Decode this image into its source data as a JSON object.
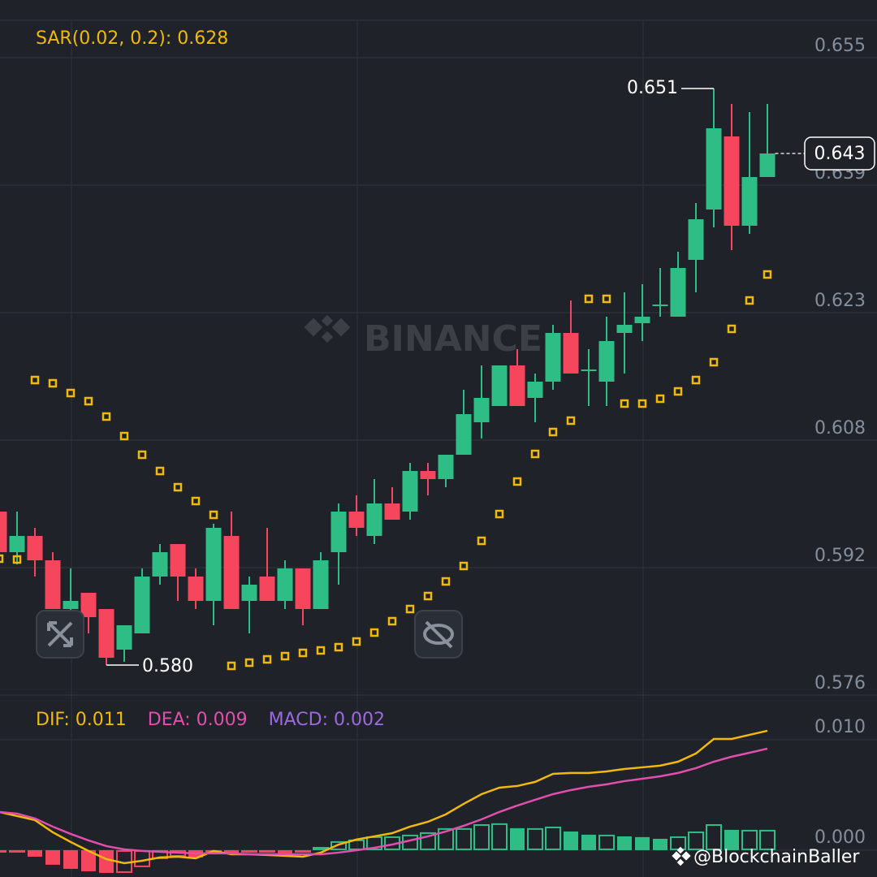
{
  "chart_data": [
    {
      "type": "candlestick",
      "indicator_label": "SAR(0.02, 0.2): 0.628",
      "watermark": "BINANCE",
      "up_color": "#2ebd85",
      "down_color": "#f6465d",
      "open": [
        0.5989,
        0.5939,
        0.5959,
        0.5929,
        0.5869,
        0.5889,
        0.5869,
        0.5819,
        0.5839,
        0.5909,
        0.5949,
        0.5909,
        0.5879,
        0.5959,
        0.5879,
        0.5909,
        0.5879,
        0.5919,
        0.5869,
        0.5939,
        0.5989,
        0.5959,
        0.5999,
        0.5989,
        0.6039,
        0.6029,
        0.6059,
        0.6099,
        0.6119,
        0.6169,
        0.6129,
        0.6149,
        0.6209,
        0.6162,
        0.6149,
        0.6209,
        0.6221,
        0.6242,
        0.6229,
        0.6299,
        0.6361,
        0.6451,
        0.6341,
        0.6401
      ],
      "high": [
        0.5989,
        0.5989,
        0.5969,
        0.5939,
        0.5919,
        0.5889,
        0.5869,
        0.5849,
        0.5919,
        0.5949,
        0.5949,
        0.5919,
        0.5974,
        0.5989,
        0.5909,
        0.5969,
        0.5929,
        0.5919,
        0.5939,
        0.5999,
        0.6009,
        0.6029,
        0.6019,
        0.6049,
        0.6049,
        0.6059,
        0.6139,
        0.6169,
        0.6169,
        0.6189,
        0.6159,
        0.6219,
        0.6249,
        0.6189,
        0.6229,
        0.6259,
        0.6269,
        0.6289,
        0.6309,
        0.6369,
        0.651,
        0.6491,
        0.6481,
        0.6491
      ],
      "low": [
        0.5929,
        0.5924,
        0.5909,
        0.5869,
        0.5849,
        0.5839,
        0.58,
        0.5804,
        0.5839,
        0.5899,
        0.5879,
        0.5869,
        0.5849,
        0.5869,
        0.5839,
        0.5879,
        0.5869,
        0.5849,
        0.5869,
        0.5899,
        0.5959,
        0.5949,
        0.5979,
        0.5979,
        0.6009,
        0.6019,
        0.6059,
        0.6079,
        0.6119,
        0.6119,
        0.6099,
        0.6139,
        0.6159,
        0.6119,
        0.6119,
        0.6159,
        0.6199,
        0.6229,
        0.6229,
        0.6259,
        0.6339,
        0.6311,
        0.6331,
        0.6401
      ],
      "close": [
        0.5939,
        0.5959,
        0.5929,
        0.5869,
        0.5879,
        0.5859,
        0.5809,
        0.5849,
        0.5909,
        0.5939,
        0.5909,
        0.5879,
        0.5969,
        0.5869,
        0.5899,
        0.5879,
        0.5919,
        0.5869,
        0.5929,
        0.5989,
        0.5969,
        0.5999,
        0.5979,
        0.6039,
        0.6029,
        0.6059,
        0.6109,
        0.6129,
        0.6169,
        0.6119,
        0.6149,
        0.6209,
        0.6159,
        0.6164,
        0.6199,
        0.6219,
        0.6229,
        0.6244,
        0.6289,
        0.6349,
        0.6461,
        0.6341,
        0.6401,
        0.643
      ],
      "sar": {
        "color": "#f0b90b",
        "values": [
          0.5931,
          0.593,
          0.6151,
          0.6147,
          0.6135,
          0.6125,
          0.6106,
          0.6082,
          0.6059,
          0.6039,
          0.6019,
          0.6002,
          0.5985,
          0.5799,
          0.5803,
          0.5807,
          0.5811,
          0.5815,
          0.5818,
          0.5822,
          0.5829,
          0.584,
          0.5854,
          0.5869,
          0.5885,
          0.5903,
          0.5922,
          0.5953,
          0.5986,
          0.6026,
          0.606,
          0.6087,
          0.6101,
          0.6251,
          0.6251,
          0.6122,
          0.6122,
          0.6128,
          0.6137,
          0.6151,
          0.6173,
          0.6214,
          0.6249,
          0.6281
        ]
      },
      "high_marker": 0.651,
      "low_marker": {
        "value": 0.58,
        "label": "0.580"
      },
      "last_price": 0.643,
      "ylim": [
        0.5759,
        0.6594
      ],
      "yticks": [
        {
          "value": 0.6548,
          "label": "0.655"
        },
        {
          "value": 0.6391,
          "label": "0.639"
        },
        {
          "value": 0.6234,
          "label": "0.623"
        },
        {
          "value": 0.6077,
          "label": "0.608"
        },
        {
          "value": 0.592,
          "label": "0.592"
        },
        {
          "value": 0.5763,
          "label": "0.576"
        }
      ],
      "grid": true
    },
    {
      "type": "macd",
      "labels": [
        {
          "text": "DIF: 0.011",
          "color": "#f0b90b"
        },
        {
          "text": "DEA: 0.009",
          "color": "#e14fad"
        },
        {
          "text": "MACD: 0.002",
          "color": "#9c6ade"
        }
      ],
      "dif": [
        0.00346,
        0.00309,
        0.00272,
        0.00162,
        0.00074,
        -7e-05,
        -0.00081,
        -0.00118,
        -0.00096,
        -0.00066,
        -0.00059,
        -0.00074,
        -7e-05,
        -0.00037,
        -0.00037,
        -0.00044,
        -0.00051,
        -0.00059,
        -0.00022,
        0.00051,
        0.00096,
        0.00125,
        0.00154,
        0.00213,
        0.00257,
        0.00324,
        0.00419,
        0.00507,
        0.00566,
        0.00581,
        0.00618,
        0.00691,
        0.00699,
        0.00699,
        0.00713,
        0.00735,
        0.0075,
        0.00765,
        0.00801,
        0.00875,
        0.01007,
        0.01007,
        0.01044,
        0.01081
      ],
      "dea": [
        0.00346,
        0.00331,
        0.00287,
        0.00213,
        0.00147,
        0.00088,
        0.00037,
        7e-05,
        -7e-05,
        -0.00015,
        -0.00022,
        -0.00029,
        -0.00029,
        -0.00029,
        -0.00037,
        -0.00037,
        -0.00037,
        -0.00037,
        -0.00037,
        -0.00022,
        0,
        0.00022,
        0.00051,
        0.00088,
        0.00125,
        0.00169,
        0.00221,
        0.00279,
        0.00346,
        0.00404,
        0.00456,
        0.00507,
        0.00544,
        0.00574,
        0.00596,
        0.00625,
        0.00647,
        0.00669,
        0.00699,
        0.00743,
        0.00801,
        0.00846,
        0.00882,
        0.00919
      ],
      "macd": [
        -0.00022,
        -0.00022,
        -0.00059,
        -0.00132,
        -0.00169,
        -0.00191,
        -0.00206,
        -0.00206,
        -0.00154,
        -0.00081,
        -0.00059,
        -0.00066,
        -0.00022,
        -0.00029,
        -0.00022,
        -0.00022,
        -0.00029,
        -0.00022,
        0.00029,
        0.00081,
        0.00096,
        0.00125,
        0.00125,
        0.0014,
        0.00162,
        0.00199,
        0.00199,
        0.00235,
        0.00243,
        0.00199,
        0.00199,
        0.00213,
        0.00169,
        0.0014,
        0.0014,
        0.00125,
        0.00118,
        0.00103,
        0.00125,
        0.00169,
        0.00235,
        0.00184,
        0.00184,
        0.00184
      ],
      "up_color": "#2ebd85",
      "down_color": "#f6465d",
      "ylim": [
        -0.00243,
        0.01301
      ],
      "yticks": [
        {
          "value": 0.01,
          "label": "0.010"
        },
        {
          "value": 0,
          "label": "0.000"
        }
      ],
      "grid": true
    },
    {
      "type": "watermark",
      "text": "@BlockchainBaller"
    }
  ]
}
